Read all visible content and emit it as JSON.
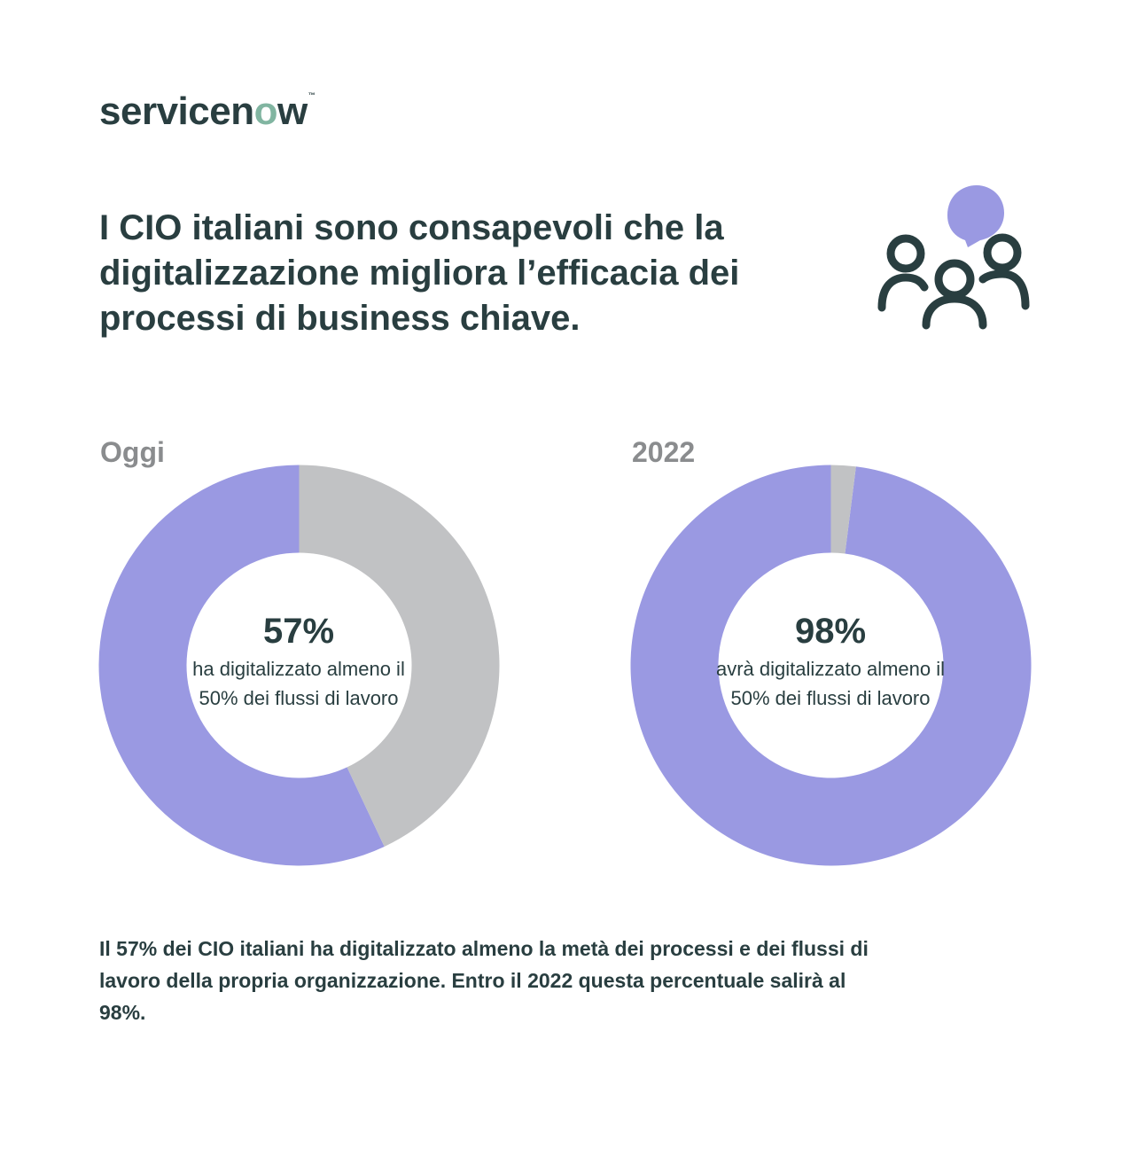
{
  "brand": {
    "logo_prefix": "servicen",
    "logo_o": "o",
    "logo_suffix": "w",
    "logo_tm": "™"
  },
  "headline": "I CIO italiani sono consapevoli che la digitalizzazione migliora l’efficacia dei processi di business chiave.",
  "icons": {
    "people": "people-conversation-icon"
  },
  "colors": {
    "filled": "#9a99e2",
    "remaining": "#c1c2c4",
    "text": "#293e40",
    "label": "#8a8c8e",
    "accent": "#81b5a1"
  },
  "chart_data": [
    {
      "type": "pie",
      "title": "Oggi",
      "labels": [
        "ha digitalizzato almeno il 50% dei flussi di lavoro",
        ""
      ],
      "values": [
        57,
        43
      ],
      "center_value": "57%",
      "center_desc": "ha digitalizzato almeno il 50% dei flussi di lavoro"
    },
    {
      "type": "pie",
      "title": "2022",
      "labels": [
        "avrà digitalizzato almeno il 50% dei flussi di lavoro",
        ""
      ],
      "values": [
        98,
        2
      ],
      "center_value": "98%",
      "center_desc": "avrà digitalizzato almeno il 50% dei flussi di lavoro"
    }
  ],
  "footnote": "Il 57% dei CIO italiani ha digitalizzato almeno la metà dei processi e dei flussi di lavoro della propria organizzazione. Entro il 2022 questa percentuale salirà al 98%."
}
